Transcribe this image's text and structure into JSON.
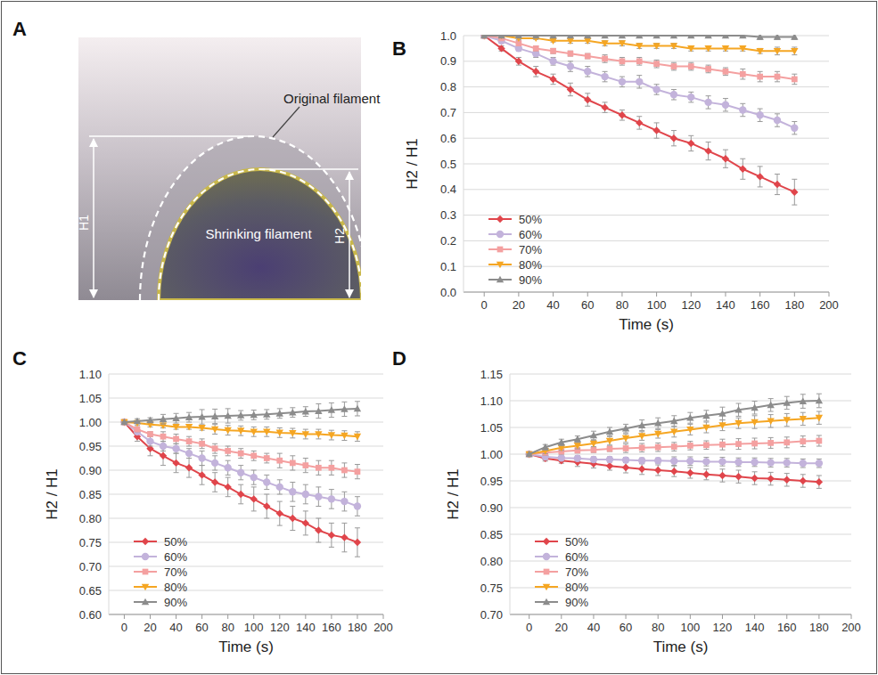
{
  "diagram": {
    "panel_label": "A",
    "original_label": "Original filament",
    "shrinking_label": "Shrinking filament",
    "h1_label": "H1",
    "h2_label": "H2"
  },
  "chart_data": [
    {
      "type": "line",
      "panel_label": "B",
      "x_label": "Time (s)",
      "y_label": "H2 / H1",
      "x": [
        0,
        10,
        20,
        30,
        40,
        50,
        60,
        70,
        80,
        90,
        100,
        110,
        120,
        130,
        140,
        150,
        160,
        170,
        180
      ],
      "xlim": [
        -12,
        200
      ],
      "xticks": [
        0,
        20,
        40,
        60,
        80,
        100,
        120,
        140,
        160,
        180,
        200
      ],
      "ylim": [
        0,
        1
      ],
      "yticks": [
        {
          "value": 0,
          "label": "0.0"
        },
        0.1,
        0.2,
        0.3,
        0.4,
        0.5,
        0.6,
        0.7,
        0.8,
        0.9,
        {
          "value": 1,
          "label": "1.0"
        }
      ],
      "grid": true,
      "legend": "lower left",
      "series": [
        {
          "name": "50%",
          "color": "#e0454b",
          "marker": "diamond",
          "values": [
            1.0,
            0.95,
            0.9,
            0.86,
            0.83,
            0.79,
            0.75,
            0.72,
            0.69,
            0.66,
            0.63,
            0.6,
            0.58,
            0.55,
            0.52,
            0.48,
            0.45,
            0.42,
            0.39
          ],
          "errors": [
            0,
            0.01,
            0.015,
            0.02,
            0.02,
            0.025,
            0.025,
            0.02,
            0.02,
            0.025,
            0.03,
            0.03,
            0.03,
            0.035,
            0.035,
            0.04,
            0.04,
            0.04,
            0.05
          ]
        },
        {
          "name": "60%",
          "color": "#c3b3db",
          "marker": "circle",
          "values": [
            1.0,
            0.98,
            0.95,
            0.93,
            0.9,
            0.88,
            0.86,
            0.84,
            0.82,
            0.82,
            0.79,
            0.77,
            0.76,
            0.74,
            0.73,
            0.71,
            0.69,
            0.67,
            0.64
          ],
          "errors": [
            0,
            0.01,
            0.01,
            0.015,
            0.015,
            0.02,
            0.02,
            0.02,
            0.02,
            0.025,
            0.02,
            0.02,
            0.02,
            0.025,
            0.025,
            0.025,
            0.025,
            0.025,
            0.025
          ]
        },
        {
          "name": "70%",
          "color": "#f4a0a0",
          "marker": "square",
          "values": [
            1.0,
            0.99,
            0.97,
            0.95,
            0.94,
            0.93,
            0.92,
            0.91,
            0.9,
            0.9,
            0.89,
            0.88,
            0.88,
            0.87,
            0.86,
            0.85,
            0.84,
            0.84,
            0.83
          ],
          "errors": [
            0,
            0.005,
            0.01,
            0.01,
            0.01,
            0.01,
            0.01,
            0.015,
            0.015,
            0.015,
            0.015,
            0.015,
            0.015,
            0.015,
            0.015,
            0.02,
            0.02,
            0.02,
            0.02
          ]
        },
        {
          "name": "80%",
          "color": "#f5a623",
          "marker": "triangle-down",
          "values": [
            1.0,
            1.0,
            0.99,
            0.99,
            0.98,
            0.98,
            0.98,
            0.97,
            0.97,
            0.96,
            0.96,
            0.96,
            0.95,
            0.95,
            0.95,
            0.95,
            0.94,
            0.94,
            0.94
          ],
          "errors": [
            0,
            0.005,
            0.005,
            0.005,
            0.005,
            0.01,
            0.01,
            0.01,
            0.01,
            0.01,
            0.01,
            0.01,
            0.01,
            0.01,
            0.01,
            0.01,
            0.01,
            0.015,
            0.015
          ]
        },
        {
          "name": "90%",
          "color": "#8c8c8c",
          "marker": "triangle",
          "values": [
            1.0,
            1.0,
            1.0,
            1.0,
            1.0,
            1.0,
            1.0,
            1.0,
            1.0,
            1.0,
            1.0,
            1.0,
            1.0,
            1.0,
            1.0,
            1.0,
            0.995,
            0.995,
            0.995
          ],
          "errors": [
            0,
            0,
            0,
            0,
            0,
            0,
            0,
            0,
            0,
            0,
            0,
            0,
            0.005,
            0.005,
            0.005,
            0.005,
            0.01,
            0.01,
            0.01
          ]
        }
      ]
    },
    {
      "type": "line",
      "panel_label": "C",
      "x_label": "Time (s)",
      "y_label": "H2 / H1",
      "x": [
        0,
        10,
        20,
        30,
        40,
        50,
        60,
        70,
        80,
        90,
        100,
        110,
        120,
        130,
        140,
        150,
        160,
        170,
        180
      ],
      "xlim": [
        -12,
        200
      ],
      "xticks": [
        0,
        20,
        40,
        60,
        80,
        100,
        120,
        140,
        160,
        180,
        200
      ],
      "ylim": [
        0.6,
        1.1
      ],
      "yticks": [
        {
          "value": 0.6,
          "label": "0.60"
        },
        0.65,
        {
          "value": 0.7,
          "label": "0.70"
        },
        0.75,
        {
          "value": 0.8,
          "label": "0.80"
        },
        0.85,
        {
          "value": 0.9,
          "label": "0.90"
        },
        0.95,
        {
          "value": 1,
          "label": "1.00"
        },
        1.05,
        {
          "value": 1.1,
          "label": "1.10"
        }
      ],
      "grid": true,
      "legend": "lower left",
      "series": [
        {
          "name": "50%",
          "color": "#e0454b",
          "marker": "diamond",
          "values": [
            1.0,
            0.97,
            0.945,
            0.93,
            0.915,
            0.905,
            0.89,
            0.875,
            0.865,
            0.85,
            0.84,
            0.825,
            0.81,
            0.8,
            0.79,
            0.775,
            0.765,
            0.76,
            0.75
          ],
          "errors": [
            0,
            0.01,
            0.015,
            0.02,
            0.02,
            0.02,
            0.02,
            0.02,
            0.02,
            0.02,
            0.025,
            0.025,
            0.025,
            0.025,
            0.025,
            0.025,
            0.025,
            0.03,
            0.03
          ]
        },
        {
          "name": "60%",
          "color": "#c3b3db",
          "marker": "circle",
          "values": [
            1.0,
            0.98,
            0.96,
            0.95,
            0.945,
            0.935,
            0.925,
            0.915,
            0.905,
            0.895,
            0.885,
            0.875,
            0.865,
            0.855,
            0.85,
            0.845,
            0.84,
            0.835,
            0.825
          ],
          "errors": [
            0,
            0.005,
            0.01,
            0.01,
            0.01,
            0.01,
            0.015,
            0.015,
            0.015,
            0.015,
            0.015,
            0.015,
            0.015,
            0.02,
            0.02,
            0.02,
            0.02,
            0.02,
            0.02
          ]
        },
        {
          "name": "70%",
          "color": "#f4a0a0",
          "marker": "square",
          "values": [
            1.0,
            0.985,
            0.975,
            0.97,
            0.965,
            0.96,
            0.955,
            0.945,
            0.94,
            0.935,
            0.93,
            0.925,
            0.92,
            0.915,
            0.91,
            0.905,
            0.905,
            0.9,
            0.897
          ],
          "errors": [
            0,
            0.005,
            0.005,
            0.01,
            0.01,
            0.01,
            0.01,
            0.01,
            0.01,
            0.01,
            0.01,
            0.01,
            0.015,
            0.015,
            0.015,
            0.015,
            0.015,
            0.015,
            0.015
          ]
        },
        {
          "name": "80%",
          "color": "#f5a623",
          "marker": "triangle-down",
          "values": [
            1.0,
            0.998,
            0.995,
            0.993,
            0.99,
            0.99,
            0.988,
            0.985,
            0.983,
            0.982,
            0.98,
            0.98,
            0.978,
            0.977,
            0.975,
            0.975,
            0.973,
            0.972,
            0.97
          ],
          "errors": [
            0,
            0.005,
            0.005,
            0.005,
            0.005,
            0.005,
            0.005,
            0.01,
            0.01,
            0.01,
            0.01,
            0.01,
            0.01,
            0.01,
            0.01,
            0.01,
            0.01,
            0.01,
            0.01
          ]
        },
        {
          "name": "90%",
          "color": "#8c8c8c",
          "marker": "triangle",
          "values": [
            1.0,
            1.002,
            1.004,
            1.006,
            1.008,
            1.01,
            1.011,
            1.012,
            1.013,
            1.014,
            1.015,
            1.016,
            1.018,
            1.02,
            1.022,
            1.023,
            1.025,
            1.027,
            1.028
          ],
          "errors": [
            0,
            0.005,
            0.005,
            0.01,
            0.01,
            0.01,
            0.015,
            0.015,
            0.015,
            0.01,
            0.01,
            0.01,
            0.01,
            0.01,
            0.01,
            0.015,
            0.015,
            0.015,
            0.015
          ]
        }
      ]
    },
    {
      "type": "line",
      "panel_label": "D",
      "x_label": "Time (s)",
      "y_label": "H2 / H1",
      "x": [
        0,
        10,
        20,
        30,
        40,
        50,
        60,
        70,
        80,
        90,
        100,
        110,
        120,
        130,
        140,
        150,
        160,
        170,
        180
      ],
      "xlim": [
        -12,
        200
      ],
      "xticks": [
        0,
        20,
        40,
        60,
        80,
        100,
        120,
        140,
        160,
        180,
        200
      ],
      "ylim": [
        0.7,
        1.15
      ],
      "yticks": [
        {
          "value": 0.7,
          "label": "0.70"
        },
        0.75,
        {
          "value": 0.8,
          "label": "0.80"
        },
        0.85,
        {
          "value": 0.9,
          "label": "0.90"
        },
        0.95,
        {
          "value": 1,
          "label": "1.00"
        },
        1.05,
        {
          "value": 1.1,
          "label": "1.10"
        },
        1.15
      ],
      "grid": true,
      "legend": "lower left",
      "series": [
        {
          "name": "50%",
          "color": "#e0454b",
          "marker": "diamond",
          "values": [
            1.0,
            0.992,
            0.988,
            0.985,
            0.982,
            0.978,
            0.975,
            0.972,
            0.97,
            0.968,
            0.965,
            0.962,
            0.96,
            0.958,
            0.955,
            0.954,
            0.952,
            0.95,
            0.948
          ],
          "errors": [
            0,
            0.005,
            0.005,
            0.008,
            0.008,
            0.008,
            0.01,
            0.01,
            0.01,
            0.01,
            0.01,
            0.01,
            0.012,
            0.012,
            0.012,
            0.012,
            0.012,
            0.012,
            0.012
          ]
        },
        {
          "name": "60%",
          "color": "#c3b3db",
          "marker": "circle",
          "values": [
            1.0,
            0.995,
            0.993,
            0.992,
            0.99,
            0.99,
            0.989,
            0.988,
            0.988,
            0.987,
            0.987,
            0.986,
            0.986,
            0.985,
            0.985,
            0.984,
            0.984,
            0.983,
            0.983
          ],
          "errors": [
            0,
            0.005,
            0.005,
            0.005,
            0.005,
            0.005,
            0.005,
            0.005,
            0.005,
            0.008,
            0.008,
            0.008,
            0.008,
            0.008,
            0.008,
            0.008,
            0.008,
            0.008,
            0.008
          ]
        },
        {
          "name": "70%",
          "color": "#f4a0a0",
          "marker": "square",
          "values": [
            1.0,
            1.003,
            1.005,
            1.007,
            1.008,
            1.01,
            1.011,
            1.012,
            1.013,
            1.014,
            1.016,
            1.017,
            1.018,
            1.019,
            1.02,
            1.021,
            1.022,
            1.024,
            1.025
          ],
          "errors": [
            0,
            0.005,
            0.005,
            0.005,
            0.005,
            0.005,
            0.008,
            0.008,
            0.008,
            0.008,
            0.008,
            0.008,
            0.01,
            0.01,
            0.01,
            0.01,
            0.01,
            0.01,
            0.01
          ]
        },
        {
          "name": "80%",
          "color": "#f5a623",
          "marker": "triangle-down",
          "values": [
            1.0,
            1.006,
            1.012,
            1.016,
            1.02,
            1.025,
            1.03,
            1.034,
            1.038,
            1.042,
            1.046,
            1.05,
            1.054,
            1.058,
            1.06,
            1.062,
            1.064,
            1.066,
            1.068
          ],
          "errors": [
            0,
            0.005,
            0.005,
            0.006,
            0.006,
            0.008,
            0.008,
            0.008,
            0.008,
            0.01,
            0.01,
            0.01,
            0.01,
            0.01,
            0.012,
            0.012,
            0.012,
            0.012,
            0.012
          ]
        },
        {
          "name": "90%",
          "color": "#8c8c8c",
          "marker": "triangle",
          "values": [
            1.0,
            1.013,
            1.022,
            1.028,
            1.035,
            1.042,
            1.048,
            1.054,
            1.058,
            1.062,
            1.068,
            1.072,
            1.076,
            1.083,
            1.087,
            1.092,
            1.096,
            1.099,
            1.1
          ],
          "errors": [
            0,
            0.005,
            0.006,
            0.006,
            0.008,
            0.008,
            0.008,
            0.01,
            0.01,
            0.01,
            0.01,
            0.01,
            0.012,
            0.012,
            0.012,
            0.012,
            0.012,
            0.013,
            0.013
          ]
        }
      ]
    }
  ]
}
